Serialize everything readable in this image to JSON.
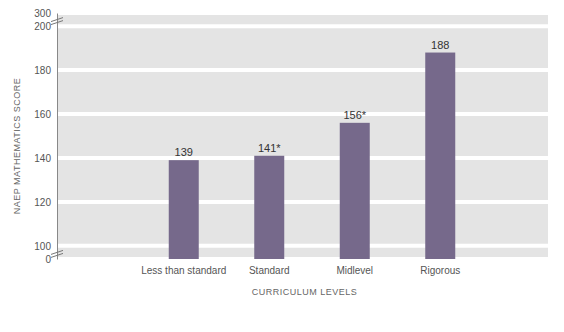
{
  "chart_data": {
    "type": "bar",
    "categories": [
      "Less than standard",
      "Standard",
      "Midlevel",
      "Rigorous"
    ],
    "values": [
      139,
      141,
      156,
      188
    ],
    "value_labels": [
      "139",
      "141*",
      "156*",
      "188"
    ],
    "data_labels": true,
    "color": "#76698b",
    "x_label": "CURRICULUM LEVELS",
    "y_label": "NAEP MATHEMATICS SCORE",
    "ylim": [
      0,
      300
    ],
    "yticks": [
      0,
      100,
      120,
      140,
      160,
      180,
      200,
      300
    ],
    "grid": true
  }
}
